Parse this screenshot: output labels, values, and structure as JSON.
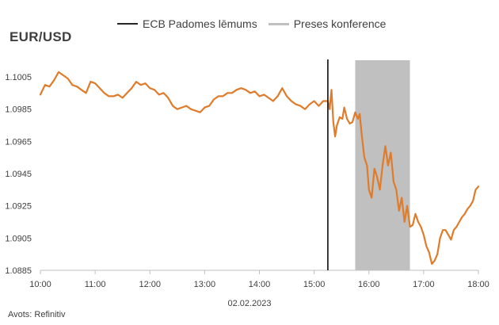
{
  "chart_data": {
    "type": "line",
    "title": "EUR/USD",
    "date_label": "02.02.2023",
    "source": "Avots: Refinitiv",
    "legend": [
      {
        "label": "ECB Padomes lēmums",
        "type": "vertical-line",
        "color": "#262626"
      },
      {
        "label": "Preses konference",
        "type": "shaded-band",
        "color": "#c0c0c0"
      }
    ],
    "x_ticks": [
      "10:00",
      "11:00",
      "12:00",
      "13:00",
      "14:00",
      "15:00",
      "16:00",
      "17:00",
      "18:00"
    ],
    "y_ticks": [
      "1.1005",
      "1.0985",
      "1.0965",
      "1.0945",
      "1.0925",
      "1.0905",
      "1.0885"
    ],
    "xlim": [
      "10:00",
      "18:00"
    ],
    "ylim": [
      1.0885,
      1.1005
    ],
    "ecb_decision_time": "15:15",
    "press_conference": [
      "15:45",
      "16:45"
    ],
    "series": [
      {
        "color": "#e07b2a",
        "points": [
          [
            "10:00",
            1.0994
          ],
          [
            "10:05",
            1.1
          ],
          [
            "10:10",
            1.0999
          ],
          [
            "10:15",
            1.1003
          ],
          [
            "10:20",
            1.1008
          ],
          [
            "10:25",
            1.1006
          ],
          [
            "10:30",
            1.1004
          ],
          [
            "10:35",
            1.1
          ],
          [
            "10:40",
            1.0999
          ],
          [
            "10:45",
            1.0997
          ],
          [
            "10:50",
            1.0995
          ],
          [
            "10:55",
            1.1002
          ],
          [
            "11:00",
            1.1001
          ],
          [
            "11:05",
            1.0998
          ],
          [
            "11:10",
            1.0995
          ],
          [
            "11:15",
            1.0993
          ],
          [
            "11:20",
            1.0993
          ],
          [
            "11:25",
            1.0994
          ],
          [
            "11:30",
            1.0992
          ],
          [
            "11:35",
            1.0995
          ],
          [
            "11:40",
            1.0998
          ],
          [
            "11:45",
            1.1002
          ],
          [
            "11:50",
            1.1
          ],
          [
            "11:55",
            1.1001
          ],
          [
            "12:00",
            1.0998
          ],
          [
            "12:05",
            1.0997
          ],
          [
            "12:10",
            1.0994
          ],
          [
            "12:15",
            1.0995
          ],
          [
            "12:20",
            1.0992
          ],
          [
            "12:25",
            1.0987
          ],
          [
            "12:30",
            1.0985
          ],
          [
            "12:35",
            1.0986
          ],
          [
            "12:40",
            1.0987
          ],
          [
            "12:45",
            1.0985
          ],
          [
            "12:50",
            1.0984
          ],
          [
            "12:55",
            1.0983
          ],
          [
            "13:00",
            1.0986
          ],
          [
            "13:05",
            1.0987
          ],
          [
            "13:10",
            1.0991
          ],
          [
            "13:15",
            1.0993
          ],
          [
            "13:20",
            1.0993
          ],
          [
            "13:25",
            1.0995
          ],
          [
            "13:30",
            1.0995
          ],
          [
            "13:35",
            1.0997
          ],
          [
            "13:40",
            1.0998
          ],
          [
            "13:45",
            1.0997
          ],
          [
            "13:50",
            1.0995
          ],
          [
            "13:55",
            1.0996
          ],
          [
            "14:00",
            1.0993
          ],
          [
            "14:05",
            1.0994
          ],
          [
            "14:10",
            1.0992
          ],
          [
            "14:15",
            1.099
          ],
          [
            "14:20",
            1.0993
          ],
          [
            "14:25",
            1.0998
          ],
          [
            "14:30",
            1.0993
          ],
          [
            "14:35",
            1.099
          ],
          [
            "14:40",
            1.0988
          ],
          [
            "14:45",
            1.0987
          ],
          [
            "14:50",
            1.0985
          ],
          [
            "14:55",
            1.0988
          ],
          [
            "15:00",
            1.099
          ],
          [
            "15:05",
            1.0987
          ],
          [
            "15:10",
            1.099
          ],
          [
            "15:15",
            1.099
          ],
          [
            "15:17",
            1.0985
          ],
          [
            "15:19",
            1.0997
          ],
          [
            "15:21",
            1.0977
          ],
          [
            "15:23",
            1.0968
          ],
          [
            "15:25",
            1.0975
          ],
          [
            "15:28",
            1.098
          ],
          [
            "15:31",
            1.0979
          ],
          [
            "15:33",
            1.0986
          ],
          [
            "15:36",
            1.0979
          ],
          [
            "15:39",
            1.0976
          ],
          [
            "15:42",
            1.0977
          ],
          [
            "15:45",
            1.0983
          ],
          [
            "15:48",
            1.0979
          ],
          [
            "15:50",
            1.0982
          ],
          [
            "15:52",
            1.097
          ],
          [
            "15:55",
            1.0955
          ],
          [
            "15:58",
            1.095
          ],
          [
            "16:00",
            1.0935
          ],
          [
            "16:03",
            1.093
          ],
          [
            "16:06",
            1.0948
          ],
          [
            "16:09",
            1.0943
          ],
          [
            "16:12",
            1.0935
          ],
          [
            "16:15",
            1.095
          ],
          [
            "16:18",
            1.0962
          ],
          [
            "16:21",
            1.095
          ],
          [
            "16:24",
            1.0958
          ],
          [
            "16:27",
            1.094
          ],
          [
            "16:30",
            1.0935
          ],
          [
            "16:33",
            1.0922
          ],
          [
            "16:36",
            1.093
          ],
          [
            "16:39",
            1.0915
          ],
          [
            "16:42",
            1.0925
          ],
          [
            "16:45",
            1.0912
          ],
          [
            "16:48",
            1.0913
          ],
          [
            "16:51",
            1.092
          ],
          [
            "16:54",
            1.0915
          ],
          [
            "16:57",
            1.0912
          ],
          [
            "17:00",
            1.0907
          ],
          [
            "17:03",
            1.09
          ],
          [
            "17:06",
            1.0896
          ],
          [
            "17:09",
            1.0889
          ],
          [
            "17:12",
            1.0891
          ],
          [
            "17:15",
            1.0895
          ],
          [
            "17:18",
            1.0905
          ],
          [
            "17:21",
            1.091
          ],
          [
            "17:24",
            1.091
          ],
          [
            "17:27",
            1.0907
          ],
          [
            "17:30",
            1.0904
          ],
          [
            "17:33",
            1.091
          ],
          [
            "17:36",
            1.0912
          ],
          [
            "17:39",
            1.0915
          ],
          [
            "17:42",
            1.0918
          ],
          [
            "17:45",
            1.092
          ],
          [
            "17:48",
            1.0923
          ],
          [
            "17:51",
            1.0925
          ],
          [
            "17:54",
            1.0928
          ],
          [
            "17:57",
            1.0935
          ],
          [
            "18:00",
            1.0937
          ]
        ]
      }
    ]
  }
}
